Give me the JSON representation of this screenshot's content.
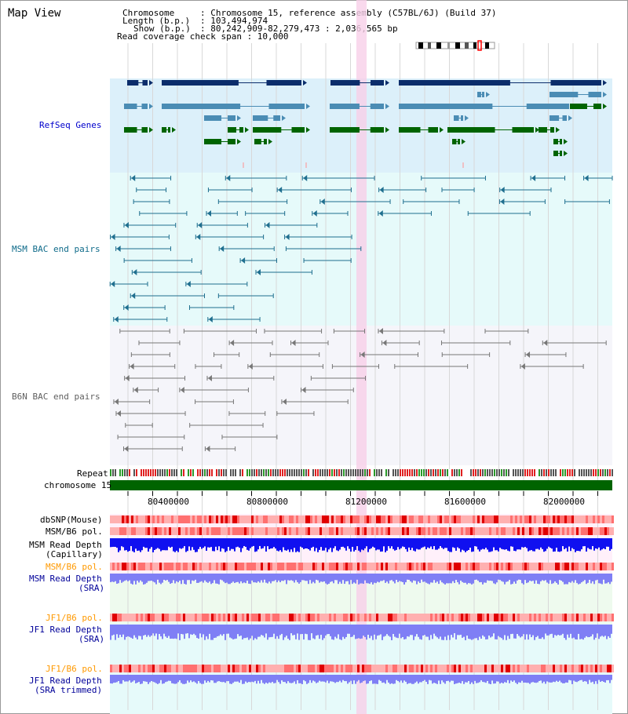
{
  "page": {
    "title": "Map View"
  },
  "header": {
    "chromosome_key": "Chromosome",
    "chromosome_val": ": Chromosome 15, reference assembly (C57BL/6J) (Build 37)",
    "length_key": "Length (b.p.)",
    "length_val": ": 103,494,974",
    "show_key": "Show (b.p.)",
    "show_val": ": 80,242,909-82,279,473 : 2,036,565 bp",
    "coverage": "Read coverage check span : 10,000"
  },
  "tracks": {
    "refseq": "RefSeq Genes",
    "msm_bac": "MSM BAC end pairs",
    "b6n_bac": "B6N BAC end pairs",
    "repeat": "Repeat",
    "chromosome": "chromosome 15",
    "dbsnp": "dbSNP(Mouse)",
    "msm_b6_pol_1": "MSM/B6 pol.",
    "msm_depth_cap_1": "MSM Read Depth",
    "msm_depth_cap_2": "(Capillary)",
    "msm_b6_pol_2": "MSM/B6 pol.",
    "msm_depth_sra_1": "MSM Read Depth",
    "msm_depth_sra_2": "(SRA)",
    "jf1_b6_pol_1": "JF1/B6 pol.",
    "jf1_depth_sra_1": "JF1 Read Depth",
    "jf1_depth_sra_2": "(SRA)",
    "jf1_b6_pol_2": "JF1/B6 pol.",
    "jf1_depth_trim_1": "JF1 Read Depth",
    "jf1_depth_trim_2": "(SRA trimmed)"
  },
  "axis": {
    "ticks": [
      "80400000",
      "80800000",
      "81200000",
      "81600000",
      "82000000"
    ]
  },
  "colors": {
    "refseq_bg": "#dcf0fa",
    "msm_bg": "#e6fafa",
    "b6n_bg": "#f5f5fa",
    "chrom_bar": "#006400",
    "highlight": "#f8d0e8",
    "dark_blue": "#0b2d6b",
    "steel_blue": "#4a8cb4",
    "green": "#006400",
    "msm_line": "#1f6f8f",
    "gray_line": "#777777",
    "depth_cap": "#1010f0",
    "depth_sra": "#7f7ff5",
    "pol": "#ff8080",
    "label_blue": "#0000cc",
    "label_teal": "#0f6b8a",
    "label_gray": "#606060",
    "label_orange": "#ff9900",
    "label_navy": "#000099"
  }
}
